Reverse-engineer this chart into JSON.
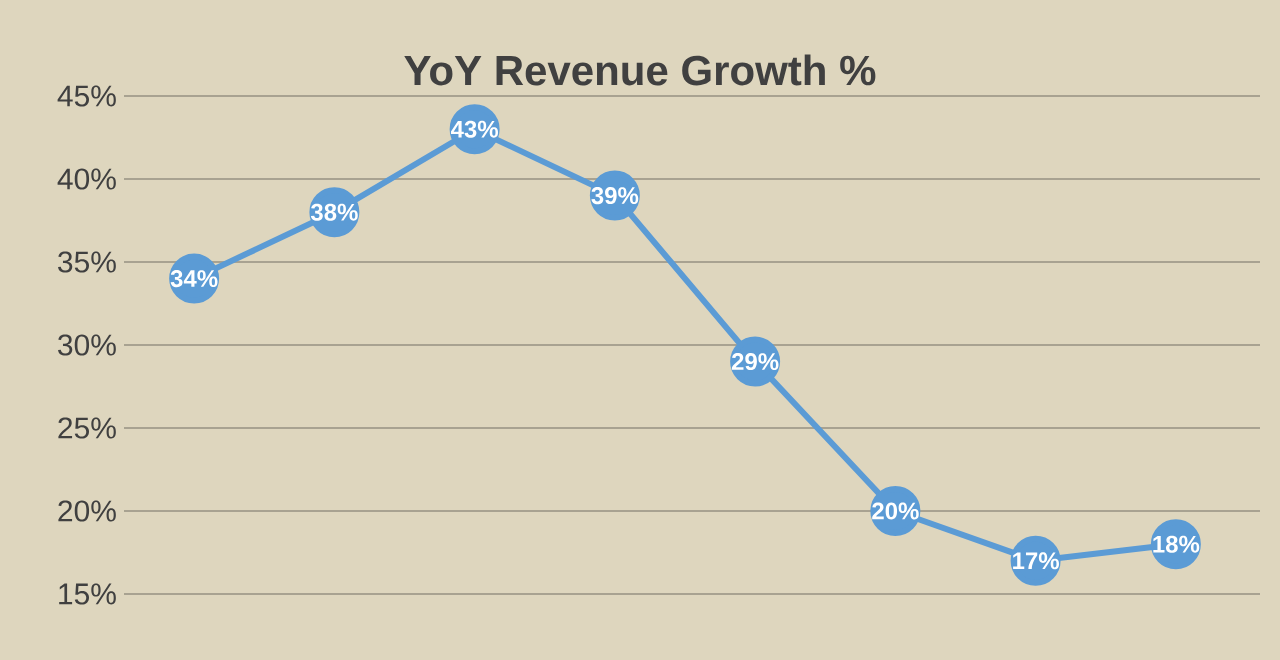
{
  "chart_data": {
    "type": "line",
    "title": "YoY Revenue Growth %",
    "categories": [
      null,
      null,
      null,
      null,
      null,
      null,
      null,
      null
    ],
    "values": [
      34,
      38,
      43,
      39,
      29,
      20,
      17,
      18
    ],
    "value_labels": [
      "34%",
      "38%",
      "43%",
      "39%",
      "29%",
      "20%",
      "17%",
      "18%"
    ],
    "color": "#5b9bd5",
    "marker": "circle",
    "line_style": "solid",
    "grid": "y",
    "ylim": [
      15,
      45
    ],
    "yticks": [
      {
        "value": 15,
        "label": "15%"
      },
      {
        "value": 20,
        "label": "20%"
      },
      {
        "value": 25,
        "label": "25%"
      },
      {
        "value": 30,
        "label": "30%"
      },
      {
        "value": 35,
        "label": "35%"
      },
      {
        "value": 40,
        "label": "40%"
      },
      {
        "value": 45,
        "label": "45%"
      }
    ],
    "tick_labels": "y"
  }
}
